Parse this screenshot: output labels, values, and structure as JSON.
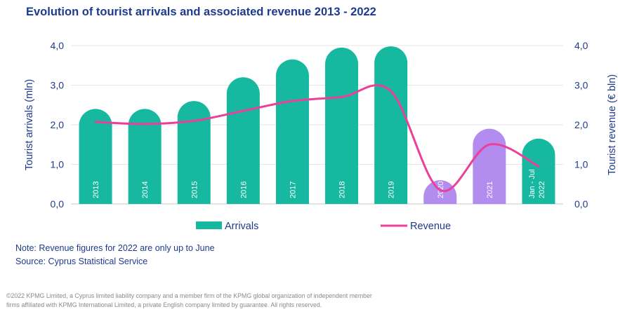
{
  "title": "Evolution of tourist arrivals and associated revenue 2013 - 2022",
  "note": "Note: Revenue figures for 2022 are only up to June",
  "source": "Source: Cyprus Statistical Service",
  "footer": [
    "©2022 KPMG Limited, a Cyprus limited liability company and a member firm of the KPMG global organization of independent member",
    "firms affiliated with KPMG International Limited, a private English company limited by guarantee. All rights reserved."
  ],
  "colors": {
    "title": "#1e3a8f",
    "axis": "#1e3a8f",
    "arrivals": "#17b8a0",
    "covid_bars": "#b38cf0",
    "revenue": "#ec3f9b",
    "grid": "#e6e6e6",
    "footer": "#8a8a8a"
  },
  "chart_data": {
    "type": "bar+line",
    "categories": [
      "2013",
      "2014",
      "2015",
      "2016",
      "2017",
      "2018",
      "2019",
      "2020",
      "2021",
      "Jan - Jul 2022"
    ],
    "series": [
      {
        "name": "Arrivals",
        "axis": "left",
        "type": "bar",
        "values": [
          2.4,
          2.4,
          2.6,
          3.2,
          3.65,
          3.95,
          3.98,
          0.6,
          1.9,
          1.65
        ]
      },
      {
        "name": "Revenue",
        "axis": "right",
        "type": "line",
        "values": [
          2.07,
          2.02,
          2.1,
          2.35,
          2.6,
          2.7,
          2.85,
          0.35,
          1.5,
          0.95
        ]
      }
    ],
    "highlight_categories": [
      "2020",
      "2021"
    ],
    "ylabel": "Tourist arrivals (mln)",
    "y2label": "Tourist revenue (€ bln)",
    "ylim": [
      0,
      4
    ],
    "y2lim": [
      0,
      4
    ],
    "yticks": [
      "0,0",
      "1,0",
      "2,0",
      "3,0",
      "4,0"
    ],
    "y2ticks": [
      "0,0",
      "1,0",
      "2,0",
      "3,0",
      "4,0"
    ],
    "legend": [
      "Arrivals",
      "Revenue"
    ],
    "legend_position": "bottom",
    "grid": true
  }
}
